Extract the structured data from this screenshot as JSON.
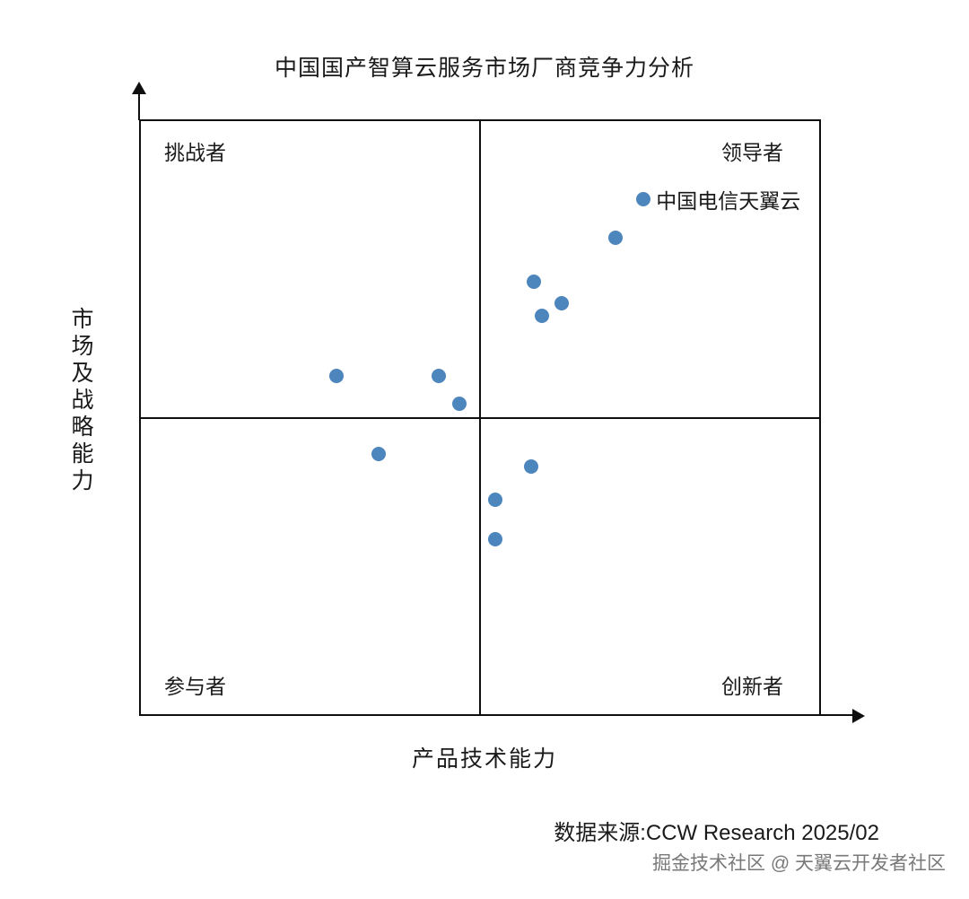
{
  "title": "中国国产智算云服务市场厂商竞争力分析",
  "quadrants": {
    "top_left": "挑战者",
    "top_right": "领导者",
    "bottom_left": "参与者",
    "bottom_right": "创新者"
  },
  "source": "数据来源:CCW Research 2025/02",
  "watermark": "掘金技术社区 @ 天翼云开发者社区",
  "colors": {
    "dot": "#4d86bd",
    "line": "#0f0f0f"
  },
  "chart_data": {
    "type": "scatter",
    "title": "中国国产智算云服务市场厂商竞争力分析",
    "xlabel": "产品技术能力",
    "ylabel": "市场及战略能力",
    "xlim": [
      0,
      100
    ],
    "ylim": [
      0,
      100
    ],
    "grid": false,
    "quadrant_labels": [
      "挑战者",
      "领导者",
      "参与者",
      "创新者"
    ],
    "points": [
      {
        "x": 74.1,
        "y": 86.9,
        "label": "中国电信天翼云"
      },
      {
        "x": 70.0,
        "y": 80.3
      },
      {
        "x": 57.9,
        "y": 72.9
      },
      {
        "x": 62.0,
        "y": 69.3
      },
      {
        "x": 59.1,
        "y": 67.1
      },
      {
        "x": 28.9,
        "y": 57.1
      },
      {
        "x": 43.9,
        "y": 57.0
      },
      {
        "x": 47.0,
        "y": 52.3
      },
      {
        "x": 35.0,
        "y": 43.8
      },
      {
        "x": 57.5,
        "y": 41.7
      },
      {
        "x": 52.2,
        "y": 36.2
      },
      {
        "x": 52.2,
        "y": 29.5
      }
    ]
  }
}
